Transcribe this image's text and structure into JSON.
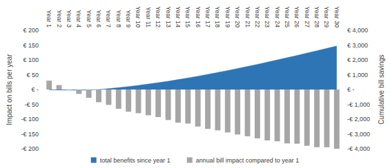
{
  "chart_data": {
    "type": "bar",
    "categories": [
      "Year 1",
      "Year 2",
      "Year 3",
      "Year 4",
      "Year 5",
      "Year 6",
      "Year 7",
      "Year 8",
      "Year 9",
      "Year 10",
      "Year 11",
      "Year 12",
      "Year 13",
      "Year 14",
      "Year 15",
      "Year 16",
      "Year 17",
      "Year 18",
      "Year 19",
      "Year 20",
      "Year 21",
      "Year 22",
      "Year 23",
      "Year 24",
      "Year 25",
      "Year 26",
      "Year 27",
      "Year 28",
      "Year 29",
      "Year 30"
    ],
    "series": [
      {
        "name": "total benefits since year 1",
        "type": "area",
        "axis": "y2",
        "color": "#2e75b6",
        "values": [
          -20,
          -30,
          -40,
          -40,
          -30,
          0,
          60,
          130,
          200,
          280,
          370,
          460,
          560,
          670,
          780,
          900,
          1020,
          1150,
          1280,
          1420,
          1560,
          1700,
          1850,
          2000,
          2150,
          2300,
          2460,
          2620,
          2780,
          2940
        ]
      },
      {
        "name": "annual bill impact compared to year 1",
        "type": "bar",
        "color": "#a6a6a6",
        "values": [
          30,
          15,
          -2,
          -15,
          -28,
          -43,
          -52,
          -65,
          -75,
          -80,
          -87,
          -93,
          -103,
          -112,
          -115,
          -125,
          -133,
          -138,
          -145,
          -152,
          -158,
          -165,
          -172,
          -175,
          -182,
          -183,
          -190,
          -195,
          -195,
          -200
        ]
      }
    ],
    "y_label": "Impact on bills per year",
    "y2_label": "Cumulative bill savings",
    "ylim": [
      -200,
      200
    ],
    "yticks": [
      {
        "value": -200,
        "label": "-€ 200"
      },
      {
        "value": -150,
        "label": "-€ 150"
      },
      {
        "value": -100,
        "label": "-€ 100"
      },
      {
        "value": -50,
        "label": "-€ 50"
      },
      {
        "value": 0,
        "label": "€ -"
      },
      {
        "value": 50,
        "label": "€ 50"
      },
      {
        "value": 100,
        "label": "€ 100"
      },
      {
        "value": 150,
        "label": "€ 150"
      },
      {
        "value": 200,
        "label": "€ 200"
      }
    ],
    "y2lim": [
      -4000,
      4000
    ],
    "y2ticks": [
      {
        "value": -4000,
        "label": "-€ 4,000"
      },
      {
        "value": -3000,
        "label": "-€ 3,000"
      },
      {
        "value": -2000,
        "label": "-€ 2,000"
      },
      {
        "value": -1000,
        "label": "-€ 1,000"
      },
      {
        "value": 0,
        "label": "€ -"
      },
      {
        "value": 1000,
        "label": "€ 1,000"
      },
      {
        "value": 2000,
        "label": "€ 2,000"
      },
      {
        "value": 3000,
        "label": "€ 3,000"
      },
      {
        "value": 4000,
        "label": "€ 4,000"
      }
    ],
    "grid": false,
    "legend": "bottom"
  }
}
